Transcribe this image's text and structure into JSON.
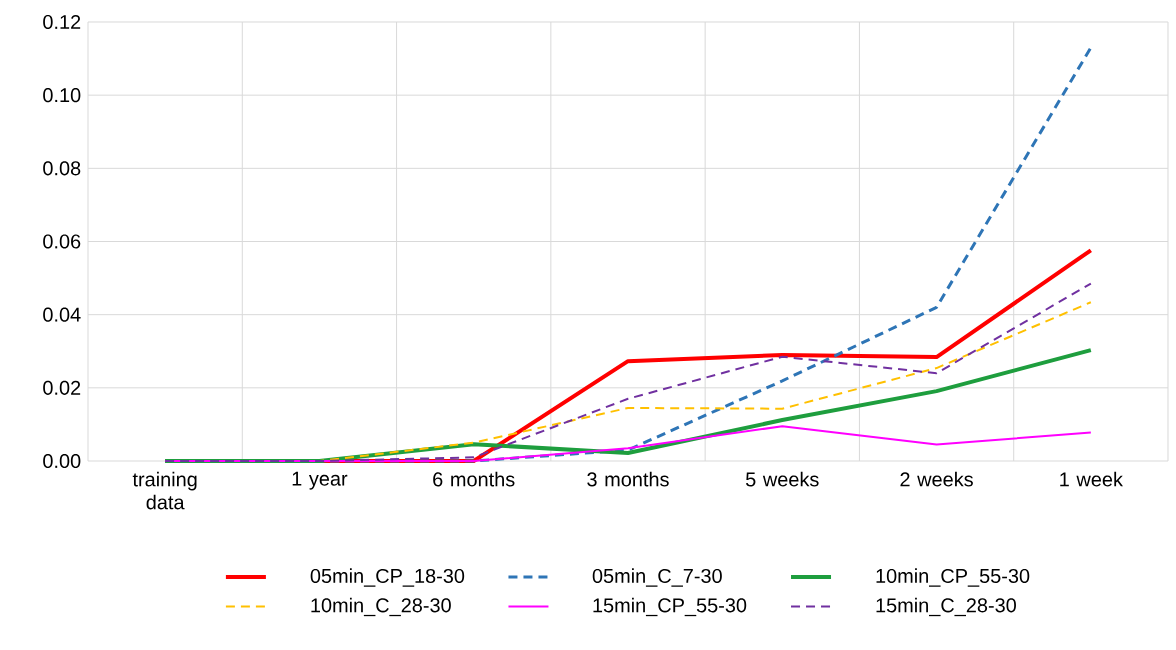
{
  "chart_data": {
    "type": "line",
    "categories": [
      "training data",
      "1 year",
      "6 months",
      "3 months",
      "5 weeks",
      "2 weeks",
      "1 week"
    ],
    "series": [
      {
        "name": "05min_CP_18-30",
        "color": "#ff0000",
        "line_style": "solid",
        "values": [
          0,
          0,
          0,
          0.0273,
          0.029,
          0.0284,
          0.0576
        ]
      },
      {
        "name": "05min_C_7-30",
        "color": "#2e75b6",
        "line_style": "dashed",
        "values": [
          0,
          0,
          0,
          0.003,
          0.0219,
          0.042,
          0.113
        ]
      },
      {
        "name": "10min_CP_55-30",
        "color": "#1e9e3e",
        "line_style": "solid",
        "values": [
          0,
          0,
          0.0046,
          0.0022,
          0.0112,
          0.0191,
          0.0303
        ]
      },
      {
        "name": "10min_C_28-30",
        "color": "#ffc000",
        "line_style": "dashed",
        "values": [
          0,
          0,
          0.005,
          0.0145,
          0.0143,
          0.0254,
          0.0434
        ]
      },
      {
        "name": "15min_CP_55-30",
        "color": "#ff00ff",
        "line_style": "solid",
        "values": [
          0,
          0,
          0,
          0.0035,
          0.0095,
          0.0045,
          0.0078
        ]
      },
      {
        "name": "15min_C_28-30",
        "color": "#7030a0",
        "line_style": "dashed",
        "values": [
          0,
          0,
          0.001,
          0.017,
          0.0285,
          0.024,
          0.0485
        ]
      }
    ],
    "ylim": [
      0,
      0.12
    ],
    "yticks": [
      {
        "value": 0,
        "label": "0.00"
      },
      {
        "value": 0.02,
        "label": "0.02"
      },
      {
        "value": 0.04,
        "label": "0.04"
      },
      {
        "value": 0.06,
        "label": "0.06"
      },
      {
        "value": 0.08,
        "label": "0.08"
      },
      {
        "value": 0.1,
        "label": "0.10"
      },
      {
        "value": 0.12,
        "label": "0.12"
      }
    ],
    "grid": true,
    "legend": "bottom",
    "marker": "none"
  }
}
